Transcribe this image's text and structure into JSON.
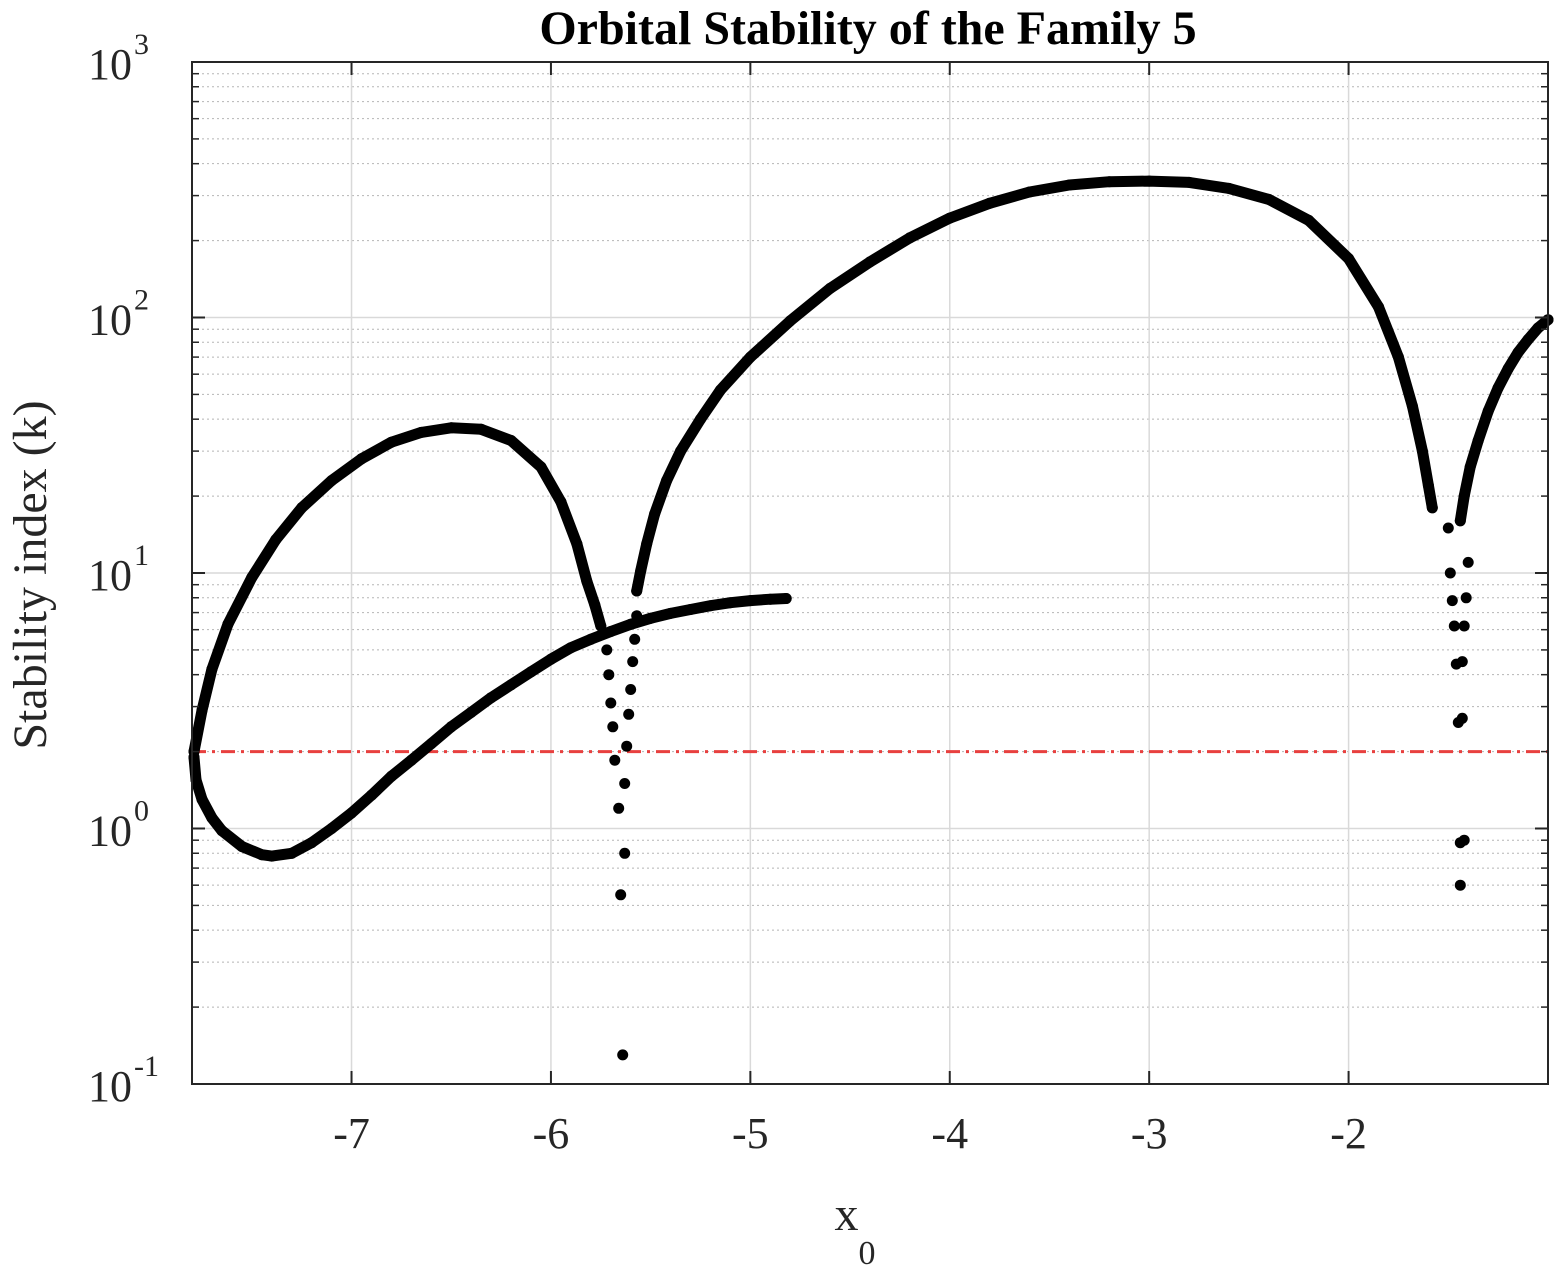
{
  "chart_data": {
    "type": "scatter",
    "title": "Orbital Stability of the Family 5",
    "xlabel": {
      "main": "x",
      "subscript": "0"
    },
    "ylabel": "Stability index (k)",
    "xlim": [
      -7.8,
      -1
    ],
    "ylim": [
      0.1,
      1000
    ],
    "yscale": "log",
    "grid": true,
    "minor_grid": true,
    "x_ticks": [
      {
        "value": -7,
        "label": "-7"
      },
      {
        "value": -6,
        "label": "-6"
      },
      {
        "value": -5,
        "label": "-5"
      },
      {
        "value": -4,
        "label": "-4"
      },
      {
        "value": -3,
        "label": "-3"
      },
      {
        "value": -2,
        "label": "-2"
      }
    ],
    "y_ticks": [
      {
        "value": 0.1,
        "base": "10",
        "exp": "-1"
      },
      {
        "value": 1,
        "base": "10",
        "exp": "0"
      },
      {
        "value": 10,
        "base": "10",
        "exp": "1"
      },
      {
        "value": 100,
        "base": "10",
        "exp": "2"
      },
      {
        "value": 1000,
        "base": "10",
        "exp": "3"
      }
    ],
    "reference_line": {
      "y": 2,
      "color": "#e8403f",
      "style": "dash-dot"
    },
    "marker_color": "#000000",
    "series": [
      {
        "curve": "upper-left-arc",
        "points": [
          [
            -7.79,
            2.0
          ],
          [
            -7.75,
            2.9
          ],
          [
            -7.7,
            4.2
          ],
          [
            -7.62,
            6.3
          ],
          [
            -7.5,
            9.6
          ],
          [
            -7.38,
            13.5
          ],
          [
            -7.25,
            18
          ],
          [
            -7.1,
            23
          ],
          [
            -6.95,
            28
          ],
          [
            -6.8,
            32.5
          ],
          [
            -6.65,
            35.5
          ],
          [
            -6.5,
            37
          ],
          [
            -6.35,
            36.5
          ],
          [
            -6.2,
            33
          ],
          [
            -6.05,
            26
          ],
          [
            -5.95,
            19
          ],
          [
            -5.87,
            13
          ],
          [
            -5.82,
            9.3
          ],
          [
            -5.78,
            7.5
          ],
          [
            -5.75,
            6.2
          ]
        ]
      },
      {
        "curve": "big-arc",
        "points": [
          [
            -5.57,
            8.5
          ],
          [
            -5.55,
            10.2
          ],
          [
            -5.52,
            13
          ],
          [
            -5.48,
            17
          ],
          [
            -5.42,
            23
          ],
          [
            -5.35,
            30
          ],
          [
            -5.25,
            40
          ],
          [
            -5.15,
            52
          ],
          [
            -5.0,
            70
          ],
          [
            -4.8,
            97
          ],
          [
            -4.6,
            130
          ],
          [
            -4.4,
            165
          ],
          [
            -4.2,
            205
          ],
          [
            -4.0,
            245
          ],
          [
            -3.8,
            280
          ],
          [
            -3.6,
            310
          ],
          [
            -3.4,
            330
          ],
          [
            -3.2,
            340
          ],
          [
            -3.0,
            342
          ],
          [
            -2.8,
            338
          ],
          [
            -2.6,
            320
          ],
          [
            -2.4,
            290
          ],
          [
            -2.2,
            240
          ],
          [
            -2.0,
            170
          ],
          [
            -1.85,
            110
          ],
          [
            -1.75,
            70
          ],
          [
            -1.68,
            45
          ],
          [
            -1.63,
            30
          ],
          [
            -1.6,
            22
          ],
          [
            -1.58,
            18
          ]
        ]
      },
      {
        "curve": "lower-loop",
        "points": [
          [
            -7.79,
            1.9
          ],
          [
            -7.78,
            1.55
          ],
          [
            -7.75,
            1.3
          ],
          [
            -7.7,
            1.1
          ],
          [
            -7.65,
            0.98
          ],
          [
            -7.55,
            0.85
          ],
          [
            -7.45,
            0.79
          ],
          [
            -7.4,
            0.78
          ],
          [
            -7.3,
            0.8
          ],
          [
            -7.2,
            0.88
          ],
          [
            -7.1,
            1.0
          ],
          [
            -7.0,
            1.15
          ],
          [
            -6.9,
            1.35
          ],
          [
            -6.8,
            1.6
          ],
          [
            -6.7,
            1.85
          ],
          [
            -6.6,
            2.15
          ],
          [
            -6.5,
            2.5
          ],
          [
            -6.4,
            2.85
          ],
          [
            -6.3,
            3.25
          ],
          [
            -6.2,
            3.65
          ],
          [
            -6.1,
            4.1
          ],
          [
            -6.0,
            4.6
          ],
          [
            -5.9,
            5.1
          ],
          [
            -5.8,
            5.5
          ],
          [
            -5.7,
            5.9
          ],
          [
            -5.6,
            6.3
          ],
          [
            -5.5,
            6.65
          ],
          [
            -5.4,
            6.95
          ],
          [
            -5.3,
            7.2
          ],
          [
            -5.2,
            7.45
          ],
          [
            -5.1,
            7.65
          ],
          [
            -5.0,
            7.8
          ],
          [
            -4.9,
            7.9
          ],
          [
            -4.82,
            7.95
          ]
        ]
      },
      {
        "curve": "right-branch",
        "points": [
          [
            -1.44,
            16
          ],
          [
            -1.42,
            20
          ],
          [
            -1.39,
            26
          ],
          [
            -1.35,
            33
          ],
          [
            -1.3,
            43
          ],
          [
            -1.25,
            53
          ],
          [
            -1.2,
            63
          ],
          [
            -1.15,
            73
          ],
          [
            -1.1,
            82
          ],
          [
            -1.05,
            91
          ],
          [
            -1.0,
            98
          ]
        ]
      },
      {
        "curve": "scattered-dips",
        "points": [
          [
            -5.72,
            5.0
          ],
          [
            -5.71,
            4.0
          ],
          [
            -5.7,
            3.1
          ],
          [
            -5.69,
            2.5
          ],
          [
            -5.68,
            1.85
          ],
          [
            -5.66,
            1.2
          ],
          [
            -5.65,
            0.55
          ],
          [
            -5.63,
            0.8
          ],
          [
            -5.63,
            1.5
          ],
          [
            -5.62,
            2.1
          ],
          [
            -5.61,
            2.8
          ],
          [
            -5.6,
            3.5
          ],
          [
            -5.59,
            4.5
          ],
          [
            -5.58,
            5.5
          ],
          [
            -5.57,
            6.8
          ],
          [
            -5.64,
            0.13
          ],
          [
            -1.5,
            15
          ],
          [
            -1.49,
            10
          ],
          [
            -1.48,
            7.8
          ],
          [
            -1.47,
            6.2
          ],
          [
            -1.46,
            4.4
          ],
          [
            -1.45,
            2.6
          ],
          [
            -1.44,
            0.88
          ],
          [
            -1.44,
            0.6
          ],
          [
            -1.43,
            4.5
          ],
          [
            -1.43,
            2.7
          ],
          [
            -1.42,
            6.2
          ],
          [
            -1.42,
            0.9
          ],
          [
            -1.41,
            8.0
          ],
          [
            -1.4,
            11
          ]
        ]
      }
    ]
  }
}
